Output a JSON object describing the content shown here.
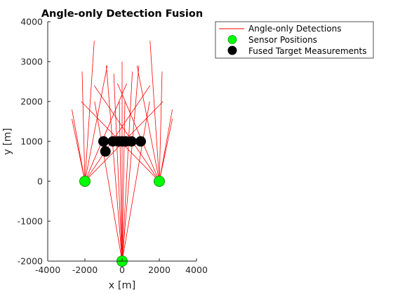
{
  "chart_data": {
    "type": "scatter",
    "title": "Angle-only Detection Fusion",
    "xlabel": "x [m]",
    "ylabel": "y [m]",
    "xlim": [
      -4000,
      4000
    ],
    "ylim": [
      -2000,
      4000
    ],
    "xticks": [
      -4000,
      -2000,
      0,
      2000,
      4000
    ],
    "yticks": [
      -2000,
      -1000,
      0,
      1000,
      2000,
      3000,
      4000
    ],
    "xtick_labels": [
      "-4000",
      "-2000",
      "0",
      "2000",
      "4000"
    ],
    "ytick_labels": [
      "-2000",
      "-1000",
      "0",
      "1000",
      "2000",
      "3000",
      "4000"
    ],
    "grid": false,
    "legend_position": "outside top-right",
    "colors": {
      "detections": "#ff0000",
      "sensors": "#00ff00",
      "sensor_edge": "#1a8f1a",
      "fused": "#000000",
      "axes": "#262626"
    },
    "series": [
      {
        "name": "Angle-only Detections",
        "kind": "rays",
        "segments": [
          {
            "from": [
              -2000,
              0
            ],
            "to": [
              -2700,
              1560
            ]
          },
          {
            "from": [
              -2000,
              0
            ],
            "to": [
              -2700,
              1800
            ]
          },
          {
            "from": [
              -2000,
              0
            ],
            "to": [
              -2150,
              2750
            ]
          },
          {
            "from": [
              -2000,
              0
            ],
            "to": [
              -1500,
              3520
            ]
          },
          {
            "from": [
              -2000,
              0
            ],
            "to": [
              -800,
              2900
            ]
          },
          {
            "from": [
              -2000,
              0
            ],
            "to": [
              250,
              2450
            ]
          },
          {
            "from": [
              -2000,
              0
            ],
            "to": [
              1500,
              2400
            ]
          },
          {
            "from": [
              -2000,
              0
            ],
            "to": [
              2200,
              2000
            ]
          },
          {
            "from": [
              2000,
              0
            ],
            "to": [
              2700,
              1560
            ]
          },
          {
            "from": [
              2000,
              0
            ],
            "to": [
              2700,
              1800
            ]
          },
          {
            "from": [
              2000,
              0
            ],
            "to": [
              2150,
              2750
            ]
          },
          {
            "from": [
              2000,
              0
            ],
            "to": [
              1500,
              3520
            ]
          },
          {
            "from": [
              2000,
              0
            ],
            "to": [
              800,
              2900
            ]
          },
          {
            "from": [
              2000,
              0
            ],
            "to": [
              -250,
              2450
            ]
          },
          {
            "from": [
              2000,
              0
            ],
            "to": [
              -1500,
              2400
            ]
          },
          {
            "from": [
              2000,
              0
            ],
            "to": [
              -2200,
              2000
            ]
          },
          {
            "from": [
              0,
              -2000
            ],
            "to": [
              -1480,
              2000
            ]
          },
          {
            "from": [
              0,
              -2000
            ],
            "to": [
              -850,
              2900
            ]
          },
          {
            "from": [
              0,
              -2000
            ],
            "to": [
              -450,
              2700
            ]
          },
          {
            "from": [
              0,
              -2000
            ],
            "to": [
              -150,
              2000
            ]
          },
          {
            "from": [
              0,
              -2000
            ],
            "to": [
              0,
              3000
            ]
          },
          {
            "from": [
              0,
              -2000
            ],
            "to": [
              150,
              2000
            ]
          },
          {
            "from": [
              0,
              -2000
            ],
            "to": [
              550,
              2750
            ]
          },
          {
            "from": [
              0,
              -2000
            ],
            "to": [
              900,
              2900
            ]
          },
          {
            "from": [
              0,
              -2000
            ],
            "to": [
              1480,
              2000
            ]
          }
        ]
      },
      {
        "name": "Sensor Positions",
        "kind": "points",
        "x": [
          -2000,
          0,
          2000
        ],
        "y": [
          0,
          -2000,
          0
        ]
      },
      {
        "name": "Fused Target Measurements",
        "kind": "points",
        "x": [
          -1000,
          -500,
          0,
          500,
          1000,
          -900,
          -200,
          200
        ],
        "y": [
          1000,
          1000,
          1000,
          1000,
          1000,
          750,
          1000,
          1000
        ]
      }
    ]
  }
}
